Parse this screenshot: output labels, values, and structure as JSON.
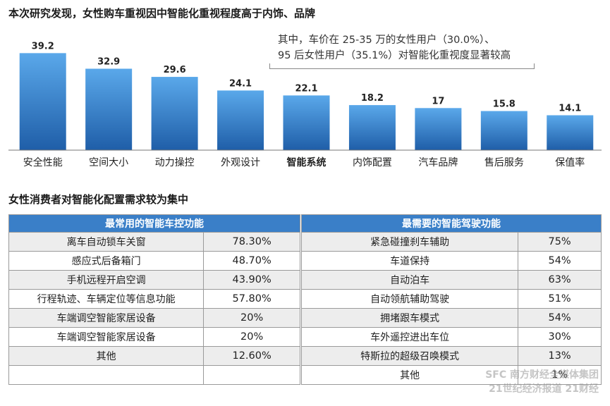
{
  "header": {
    "title": "本次研究发现，女性购车重视因中智能化重视程度高于内饰、品牌",
    "callout_line1": "其中，车价在 25-35 万的女性用户（30.0%）、",
    "callout_line2": "95 后女性用户（35.1%）对智能化重视度显著较高"
  },
  "chart_data": {
    "type": "bar",
    "title": "本次研究发现，女性购车重视因中智能化重视程度高于内饰、品牌",
    "categories": [
      "安全性能",
      "空间大小",
      "动力操控",
      "外观设计",
      "智能系统",
      "内饰配置",
      "汽车品牌",
      "售后服务",
      "保值率"
    ],
    "values": [
      39.2,
      32.9,
      29.6,
      24.1,
      22.1,
      18.2,
      17,
      15.8,
      14.1
    ],
    "value_labels": [
      "39.2",
      "32.9",
      "29.6",
      "24.1",
      "22.1",
      "18.2",
      "17",
      "15.8",
      "14.1"
    ],
    "highlight": "智能系统",
    "ylim": [
      0,
      45
    ],
    "bar_color_top": "#5aa8ea",
    "bar_color_bottom": "#1f5ea8"
  },
  "section2": {
    "title": "女性消费者对智能化配置需求较为集中"
  },
  "table_left": {
    "header": "最常用的智能车控功能",
    "rows": [
      {
        "name": "离车自动锁车关窗",
        "value": "78.30%"
      },
      {
        "name": "感应式后备箱门",
        "value": "48.70%"
      },
      {
        "name": "手机远程开启空调",
        "value": "43.90%"
      },
      {
        "name": "行程轨迹、车辆定位等信息功能",
        "value": "57.80%"
      },
      {
        "name": "车端调空智能家居设备",
        "value": "20%"
      },
      {
        "name": "车端调空智能家居设备",
        "value": "20%"
      },
      {
        "name": "其他",
        "value": "12.60%"
      },
      {
        "name": "",
        "value": ""
      }
    ]
  },
  "table_right": {
    "header": "最需要的智能驾驶功能",
    "rows": [
      {
        "name": "紧急碰撞刹车辅助",
        "value": "75%"
      },
      {
        "name": "车道保持",
        "value": "54%"
      },
      {
        "name": "自动泊车",
        "value": "63%"
      },
      {
        "name": "自动领航辅助驾驶",
        "value": "51%"
      },
      {
        "name": "拥堵跟车模式",
        "value": "54%"
      },
      {
        "name": "车外遥控进出车位",
        "value": "30%"
      },
      {
        "name": "特斯拉的超级召唤模式",
        "value": "13%"
      },
      {
        "name": "其他",
        "value": "1%"
      }
    ]
  },
  "watermark": {
    "line1": "SFC 南方财经全媒体集团",
    "line2": "21世纪经济报道 21财经"
  }
}
